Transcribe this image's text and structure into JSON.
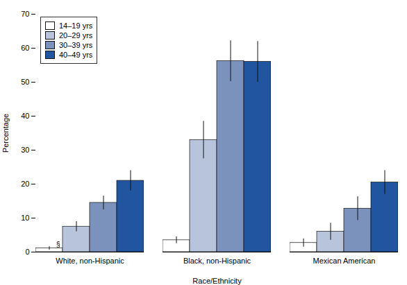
{
  "chart_data": {
    "type": "bar",
    "title": "",
    "xlabel": "Race/Ethnicity",
    "ylabel": "Percentage",
    "categories": [
      "White, non-Hispanic",
      "Black, non-Hispanic",
      "Mexican American"
    ],
    "series": [
      {
        "name": "14–19 yrs",
        "color": "#ffffff",
        "values": [
          1.1,
          3.5,
          2.7
        ],
        "errors": [
          0.5,
          1.0,
          1.2
        ]
      },
      {
        "name": "20–29 yrs",
        "color": "#b8c4dc",
        "values": [
          7.5,
          33.0,
          6.0
        ],
        "errors": [
          1.5,
          5.5,
          2.5
        ]
      },
      {
        "name": "30–39 yrs",
        "color": "#7b93bc",
        "values": [
          14.5,
          56.2,
          12.8
        ],
        "errors": [
          2.0,
          6.0,
          3.5
        ]
      },
      {
        "name": "40–49 yrs",
        "color": "#2155a0",
        "values": [
          21.0,
          56.0,
          20.5
        ],
        "errors": [
          3.0,
          6.0,
          3.5
        ]
      }
    ],
    "annotations": [
      {
        "text": "§",
        "category": "White, non-Hispanic",
        "series": "14–19 yrs"
      }
    ],
    "ylim": [
      0,
      70
    ],
    "yticks": [
      0,
      10,
      20,
      30,
      40,
      50,
      60,
      70
    ],
    "grid": false,
    "legend": "upper left"
  }
}
